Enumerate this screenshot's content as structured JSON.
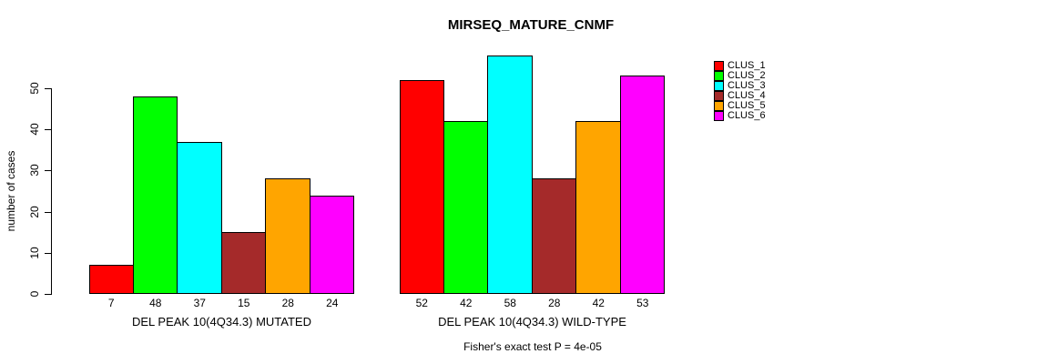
{
  "chart_data": {
    "type": "bar",
    "title": "MIRSEQ_MATURE_CNMF",
    "ylabel": "number of cases",
    "ylim": [
      0,
      58
    ],
    "yticks": [
      0,
      10,
      20,
      30,
      40,
      50
    ],
    "grid": false,
    "legend_position": "top-right",
    "categories": [
      "DEL PEAK 10(4Q34.3) MUTATED",
      "DEL PEAK 10(4Q34.3) WILD-TYPE"
    ],
    "series": [
      {
        "name": "CLUS_1",
        "color": "#FF0000",
        "values": [
          7,
          52
        ]
      },
      {
        "name": "CLUS_2",
        "color": "#00FF00",
        "values": [
          48,
          42
        ]
      },
      {
        "name": "CLUS_3",
        "color": "#00FFFF",
        "values": [
          37,
          58
        ]
      },
      {
        "name": "CLUS_4",
        "color": "#A52A2A",
        "values": [
          15,
          28
        ]
      },
      {
        "name": "CLUS_5",
        "color": "#FFA500",
        "values": [
          28,
          42
        ]
      },
      {
        "name": "CLUS_6",
        "color": "#FF00FF",
        "values": [
          24,
          53
        ]
      }
    ],
    "bar_value_labels": [
      [
        "7",
        "48",
        "37",
        "15",
        "28",
        "24"
      ],
      [
        "52",
        "42",
        "58",
        "28",
        "42",
        "53"
      ]
    ],
    "annotation": "Fisher's exact test P = 4e-05"
  }
}
